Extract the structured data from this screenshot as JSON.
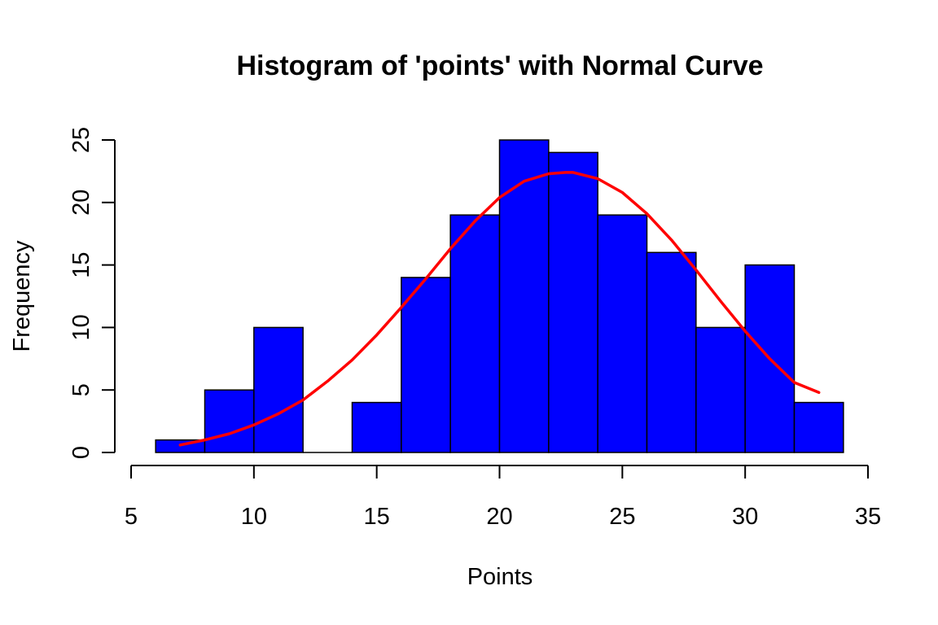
{
  "chart_data": {
    "type": "bar",
    "title": "Histogram of 'points' with Normal Curve",
    "xlabel": "Points",
    "ylabel": "Frequency",
    "xlim": [
      5,
      35
    ],
    "ylim": [
      0,
      25
    ],
    "x_ticks": [
      5,
      10,
      15,
      20,
      25,
      30,
      35
    ],
    "y_ticks": [
      0,
      5,
      10,
      15,
      20,
      25
    ],
    "bins": [
      {
        "start": 6,
        "end": 8,
        "count": 1
      },
      {
        "start": 8,
        "end": 10,
        "count": 5
      },
      {
        "start": 10,
        "end": 12,
        "count": 10
      },
      {
        "start": 12,
        "end": 14,
        "count": 0
      },
      {
        "start": 14,
        "end": 16,
        "count": 4
      },
      {
        "start": 16,
        "end": 18,
        "count": 14
      },
      {
        "start": 18,
        "end": 20,
        "count": 19
      },
      {
        "start": 20,
        "end": 22,
        "count": 25
      },
      {
        "start": 22,
        "end": 24,
        "count": 24
      },
      {
        "start": 24,
        "end": 26,
        "count": 19
      },
      {
        "start": 26,
        "end": 28,
        "count": 16
      },
      {
        "start": 28,
        "end": 30,
        "count": 10
      },
      {
        "start": 30,
        "end": 32,
        "count": 15
      },
      {
        "start": 32,
        "end": 34,
        "count": 4
      }
    ],
    "curve": {
      "type": "normal",
      "x": [
        7,
        8,
        9,
        10,
        11,
        12,
        13,
        14,
        15,
        16,
        17,
        18,
        19,
        20,
        21,
        22,
        22.7,
        23,
        24,
        25,
        26,
        27,
        28,
        29,
        30,
        31,
        32,
        33
      ],
      "y": [
        0.6,
        1.0,
        1.5,
        2.2,
        3.1,
        4.2,
        5.7,
        7.4,
        9.4,
        11.6,
        13.9,
        16.3,
        18.5,
        20.4,
        21.7,
        22.3,
        22.4,
        22.4,
        21.9,
        20.8,
        19.1,
        17.0,
        14.6,
        12.1,
        9.7,
        7.5,
        5.6,
        4.8
      ],
      "color": "#ff0000"
    },
    "bar_color": "#0000ff",
    "bar_border_color": "#000000",
    "grid": false,
    "legend": "none"
  }
}
